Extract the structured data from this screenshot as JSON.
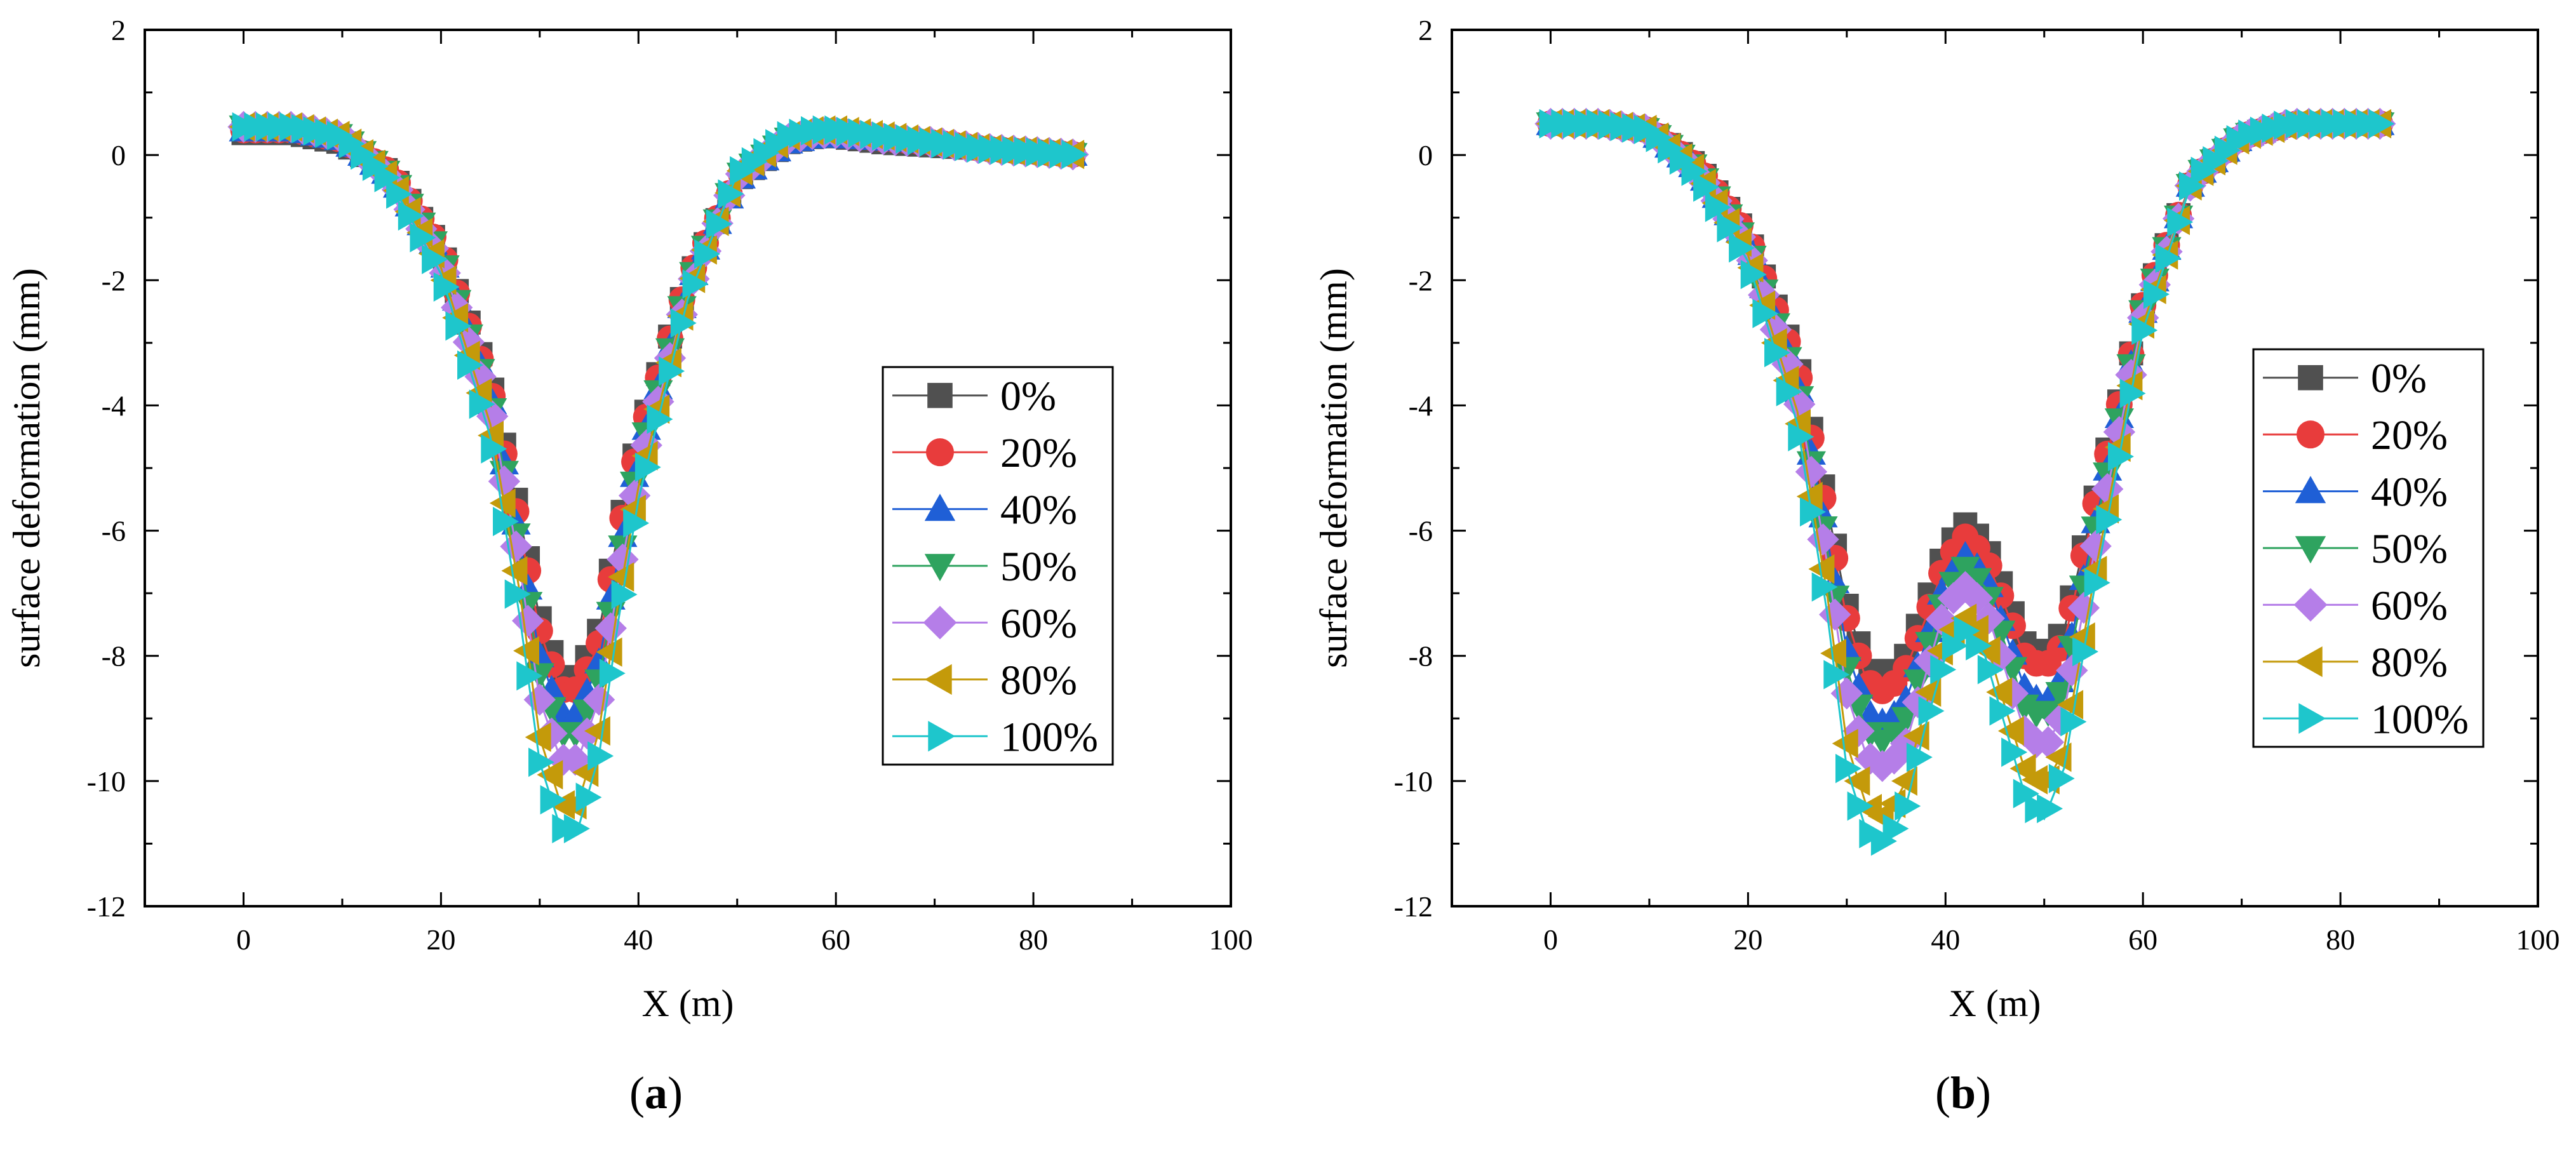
{
  "chart_data": [
    {
      "type": "line",
      "panel": "a",
      "panel_label": {
        "open": "(",
        "letter": "a",
        "close": ")"
      },
      "xlabel": "X (m)",
      "ylabel": "surface deformation (mm)",
      "xlim": [
        -10,
        100
      ],
      "ylim": [
        -12,
        2
      ],
      "xticks": [
        0,
        20,
        40,
        60,
        80,
        100
      ],
      "yticks": [
        -12,
        -10,
        -8,
        -6,
        -4,
        -2,
        0,
        2
      ],
      "legend_position": "middle-right",
      "series": [
        {
          "name": "0%",
          "color": "#505050",
          "marker": "square",
          "x": [
            0,
            5,
            10,
            15,
            20,
            25,
            28,
            30,
            32,
            33,
            34,
            36,
            38,
            40,
            45,
            50,
            55,
            58,
            60,
            65,
            70,
            75,
            80,
            85
          ],
          "y": [
            0.35,
            0.35,
            0.2,
            -0.3,
            -1.5,
            -3.6,
            -5.8,
            -7.4,
            -8.3,
            -8.4,
            -8.3,
            -7.6,
            -6.0,
            -4.5,
            -2.0,
            -0.4,
            0.2,
            0.3,
            0.3,
            0.2,
            0.15,
            0.1,
            0.05,
            0.0
          ]
        },
        {
          "name": "20%",
          "color": "#e83c3c",
          "marker": "circle",
          "x": [
            0,
            5,
            10,
            15,
            20,
            25,
            28,
            30,
            32,
            33,
            34,
            36,
            38,
            40,
            45,
            50,
            55,
            58,
            60,
            65,
            70,
            75,
            80,
            85
          ],
          "y": [
            0.4,
            0.4,
            0.25,
            -0.3,
            -1.5,
            -3.7,
            -6.0,
            -7.6,
            -8.5,
            -8.6,
            -8.5,
            -7.8,
            -6.1,
            -4.6,
            -2.0,
            -0.35,
            0.25,
            0.35,
            0.35,
            0.25,
            0.2,
            0.1,
            0.05,
            0.0
          ]
        },
        {
          "name": "40%",
          "color": "#1f5fd6",
          "marker": "triangle-up",
          "x": [
            0,
            5,
            10,
            15,
            20,
            25,
            28,
            30,
            32,
            33,
            34,
            36,
            38,
            40,
            45,
            50,
            55,
            58,
            60,
            65,
            70,
            75,
            80,
            85
          ],
          "y": [
            0.4,
            0.4,
            0.25,
            -0.35,
            -1.6,
            -3.8,
            -6.2,
            -8.0,
            -8.9,
            -9.0,
            -8.9,
            -8.1,
            -6.4,
            -4.8,
            -2.1,
            -0.4,
            0.2,
            0.3,
            0.3,
            0.25,
            0.2,
            0.1,
            0.05,
            0.0
          ]
        },
        {
          "name": "50%",
          "color": "#2ea35f",
          "marker": "triangle-down",
          "x": [
            0,
            5,
            10,
            15,
            20,
            25,
            28,
            30,
            32,
            33,
            34,
            36,
            38,
            40,
            45,
            50,
            55,
            58,
            60,
            65,
            70,
            75,
            80,
            85
          ],
          "y": [
            0.45,
            0.45,
            0.3,
            -0.35,
            -1.6,
            -3.9,
            -6.4,
            -8.3,
            -9.2,
            -9.3,
            -9.2,
            -8.4,
            -6.6,
            -4.9,
            -2.1,
            -0.35,
            0.25,
            0.35,
            0.35,
            0.25,
            0.2,
            0.1,
            0.05,
            0.0
          ]
        },
        {
          "name": "60%",
          "color": "#b57ee8",
          "marker": "diamond",
          "x": [
            0,
            5,
            10,
            15,
            20,
            25,
            28,
            30,
            32,
            33,
            34,
            36,
            38,
            40,
            45,
            50,
            55,
            58,
            60,
            65,
            70,
            75,
            80,
            85
          ],
          "y": [
            0.45,
            0.45,
            0.3,
            -0.4,
            -1.7,
            -4.0,
            -6.6,
            -8.7,
            -9.6,
            -9.75,
            -9.6,
            -8.7,
            -6.8,
            -5.1,
            -2.2,
            -0.35,
            0.25,
            0.35,
            0.35,
            0.25,
            0.2,
            0.1,
            0.05,
            0.0
          ]
        },
        {
          "name": "80%",
          "color": "#c49a0a",
          "marker": "triangle-left",
          "x": [
            0,
            5,
            10,
            15,
            20,
            25,
            28,
            30,
            32,
            33,
            34,
            36,
            38,
            40,
            45,
            50,
            55,
            58,
            60,
            65,
            70,
            75,
            80,
            85
          ],
          "y": [
            0.45,
            0.45,
            0.3,
            -0.4,
            -1.8,
            -4.3,
            -7.0,
            -9.3,
            -10.3,
            -10.5,
            -10.3,
            -9.2,
            -7.1,
            -5.3,
            -2.2,
            -0.3,
            0.3,
            0.4,
            0.4,
            0.3,
            0.2,
            0.1,
            0.05,
            0.0
          ]
        },
        {
          "name": "100%",
          "color": "#1ec6cc",
          "marker": "triangle-right",
          "x": [
            0,
            5,
            10,
            15,
            20,
            25,
            28,
            30,
            32,
            33,
            34,
            36,
            38,
            40,
            45,
            50,
            55,
            58,
            60,
            65,
            70,
            75,
            80,
            85
          ],
          "y": [
            0.45,
            0.45,
            0.3,
            -0.45,
            -1.9,
            -4.5,
            -7.4,
            -9.7,
            -10.7,
            -10.85,
            -10.7,
            -9.6,
            -7.4,
            -5.5,
            -2.3,
            -0.3,
            0.3,
            0.4,
            0.4,
            0.3,
            0.2,
            0.1,
            0.05,
            0.0
          ]
        }
      ]
    },
    {
      "type": "line",
      "panel": "b",
      "panel_label": {
        "open": "(",
        "letter": "b",
        "close": ")"
      },
      "xlabel": "X (m)",
      "ylabel": "surface deformation (mm)",
      "xlim": [
        -10,
        100
      ],
      "ylim": [
        -12,
        2
      ],
      "xticks": [
        0,
        20,
        40,
        60,
        80,
        100
      ],
      "yticks": [
        -12,
        -10,
        -8,
        -6,
        -4,
        -2,
        0,
        2
      ],
      "legend_position": "middle-right",
      "series": [
        {
          "name": "0%",
          "color": "#505050",
          "marker": "square",
          "x": [
            0,
            5,
            10,
            15,
            20,
            25,
            28,
            30,
            32,
            34,
            36,
            38,
            40,
            42,
            44,
            46,
            48,
            50,
            52,
            55,
            60,
            65,
            70,
            75,
            80,
            85
          ],
          "y": [
            0.5,
            0.5,
            0.4,
            -0.2,
            -1.3,
            -3.3,
            -5.6,
            -7.2,
            -8.2,
            -8.4,
            -8.0,
            -7.2,
            -6.3,
            -5.9,
            -6.2,
            -7.0,
            -7.8,
            -8.0,
            -7.6,
            -5.6,
            -2.4,
            -0.4,
            0.3,
            0.5,
            0.5,
            0.5
          ]
        },
        {
          "name": "20%",
          "color": "#e83c3c",
          "marker": "circle",
          "x": [
            0,
            5,
            10,
            15,
            20,
            25,
            28,
            30,
            32,
            34,
            36,
            38,
            40,
            42,
            44,
            46,
            48,
            50,
            52,
            55,
            60,
            65,
            70,
            75,
            80,
            85
          ],
          "y": [
            0.5,
            0.5,
            0.4,
            -0.2,
            -1.3,
            -3.4,
            -5.8,
            -7.4,
            -8.4,
            -8.6,
            -8.2,
            -7.4,
            -6.5,
            -6.1,
            -6.4,
            -7.2,
            -8.0,
            -8.2,
            -7.8,
            -5.7,
            -2.4,
            -0.4,
            0.3,
            0.5,
            0.5,
            0.5
          ]
        },
        {
          "name": "40%",
          "color": "#1f5fd6",
          "marker": "triangle-up",
          "x": [
            0,
            5,
            10,
            15,
            20,
            25,
            28,
            30,
            32,
            34,
            36,
            38,
            40,
            42,
            44,
            46,
            48,
            50,
            52,
            55,
            60,
            65,
            70,
            75,
            80,
            85
          ],
          "y": [
            0.5,
            0.5,
            0.4,
            -0.25,
            -1.4,
            -3.6,
            -6.1,
            -7.9,
            -8.9,
            -9.1,
            -8.7,
            -7.8,
            -6.8,
            -6.4,
            -6.7,
            -7.6,
            -8.5,
            -8.8,
            -8.3,
            -6.0,
            -2.5,
            -0.4,
            0.3,
            0.5,
            0.5,
            0.5
          ]
        },
        {
          "name": "50%",
          "color": "#2ea35f",
          "marker": "triangle-down",
          "x": [
            0,
            5,
            10,
            15,
            20,
            25,
            28,
            30,
            32,
            34,
            36,
            38,
            40,
            42,
            44,
            46,
            48,
            50,
            52,
            55,
            60,
            65,
            70,
            75,
            80,
            85
          ],
          "y": [
            0.5,
            0.5,
            0.4,
            -0.25,
            -1.45,
            -3.7,
            -6.3,
            -8.2,
            -9.2,
            -9.4,
            -9.0,
            -8.0,
            -7.0,
            -6.6,
            -6.9,
            -7.8,
            -8.8,
            -9.0,
            -8.5,
            -6.1,
            -2.5,
            -0.4,
            0.3,
            0.5,
            0.5,
            0.5
          ]
        },
        {
          "name": "60%",
          "color": "#b57ee8",
          "marker": "diamond",
          "x": [
            0,
            5,
            10,
            15,
            20,
            25,
            28,
            30,
            32,
            34,
            36,
            38,
            40,
            42,
            44,
            46,
            48,
            50,
            52,
            55,
            60,
            65,
            70,
            75,
            80,
            85
          ],
          "y": [
            0.5,
            0.5,
            0.4,
            -0.3,
            -1.5,
            -3.8,
            -6.5,
            -8.6,
            -9.6,
            -9.8,
            -9.4,
            -8.3,
            -7.2,
            -6.9,
            -7.2,
            -8.2,
            -9.2,
            -9.5,
            -8.9,
            -6.4,
            -2.6,
            -0.4,
            0.3,
            0.5,
            0.5,
            0.5
          ]
        },
        {
          "name": "80%",
          "color": "#c49a0a",
          "marker": "triangle-left",
          "x": [
            0,
            5,
            10,
            15,
            20,
            25,
            28,
            30,
            32,
            34,
            36,
            38,
            40,
            42,
            44,
            46,
            48,
            50,
            52,
            55,
            60,
            65,
            70,
            75,
            80,
            85
          ],
          "y": [
            0.5,
            0.5,
            0.4,
            -0.3,
            -1.6,
            -4.1,
            -7.0,
            -9.4,
            -10.4,
            -10.6,
            -10.0,
            -8.8,
            -7.7,
            -7.4,
            -7.7,
            -8.8,
            -9.8,
            -10.1,
            -9.5,
            -6.8,
            -2.7,
            -0.4,
            0.3,
            0.5,
            0.5,
            0.5
          ]
        },
        {
          "name": "100%",
          "color": "#1ec6cc",
          "marker": "triangle-right",
          "x": [
            0,
            5,
            10,
            15,
            20,
            25,
            28,
            30,
            32,
            34,
            36,
            38,
            40,
            42,
            44,
            46,
            48,
            50,
            52,
            55,
            60,
            65,
            70,
            75,
            80,
            85
          ],
          "y": [
            0.5,
            0.5,
            0.4,
            -0.35,
            -1.7,
            -4.3,
            -7.3,
            -9.8,
            -10.8,
            -11.0,
            -10.4,
            -9.1,
            -8.0,
            -7.6,
            -8.0,
            -9.1,
            -10.2,
            -10.6,
            -9.8,
            -7.0,
            -2.8,
            -0.4,
            0.3,
            0.5,
            0.5,
            0.5
          ]
        }
      ]
    }
  ]
}
